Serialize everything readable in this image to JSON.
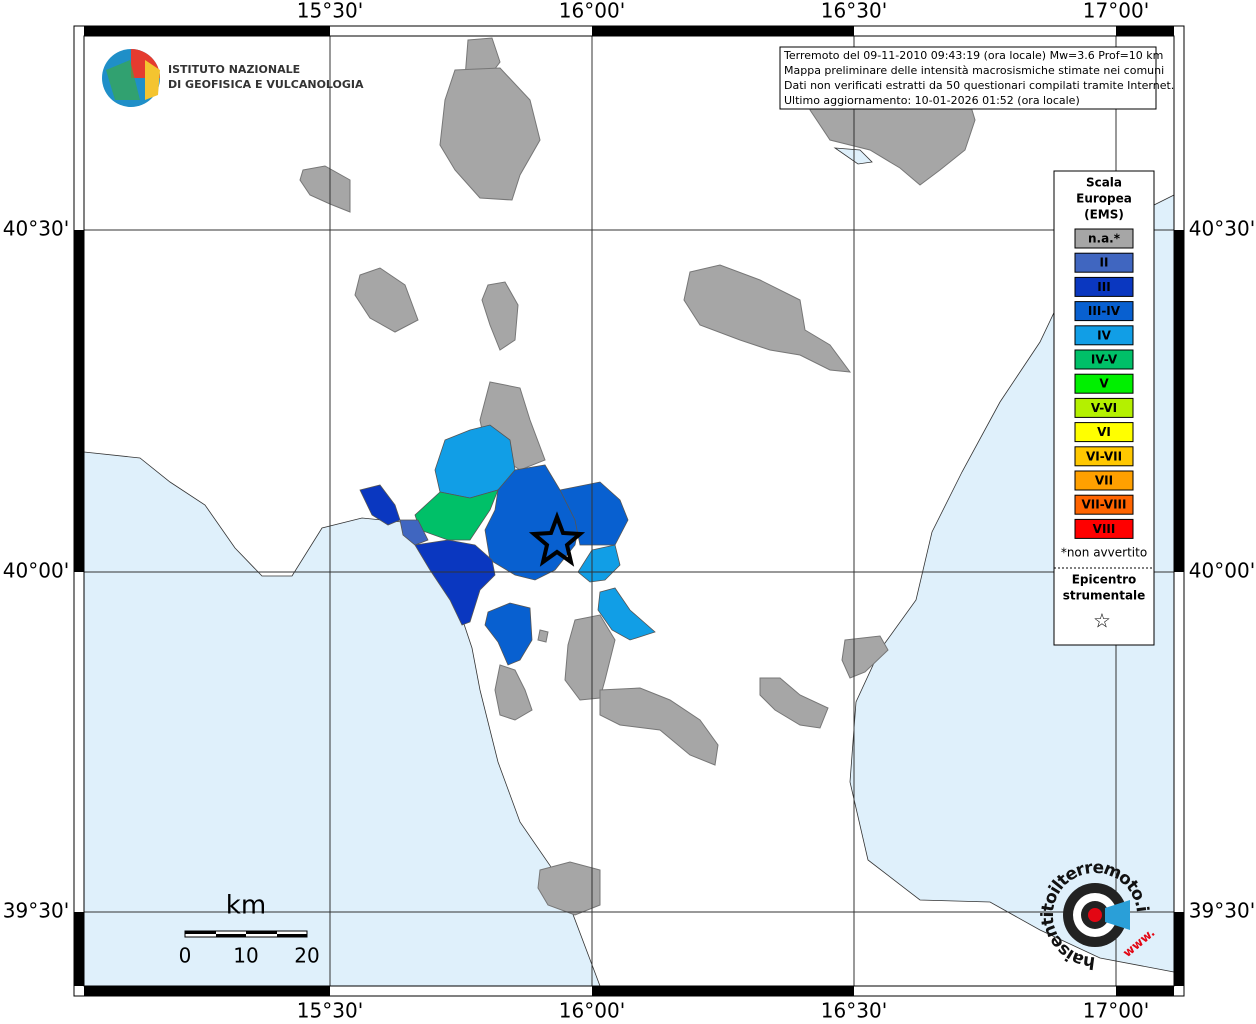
{
  "map": {
    "x_labels": [
      "15°30'",
      "16°00'",
      "16°30'",
      "17°00'"
    ],
    "y_labels": [
      "40°30'",
      "40°00'",
      "39°30'"
    ],
    "info_box": [
      "Terremoto del 09-11-2010 09:43:19 (ora locale) Mw=3.6 Prof=10 km",
      "Mappa preliminare delle intensità macrosismiche stimate nei comuni",
      "Dati non verificati estratti da 50 questionari compilati tramite Internet.",
      "Ultimo aggiornamento: 10-01-2026 01:52 (ora locale)"
    ],
    "logo": [
      "ISTITUTO NAZIONALE",
      "DI GEOFISICA E VULCANOLOGIA"
    ],
    "legend": {
      "title": [
        "Scala",
        "Europea",
        "(EMS)"
      ],
      "classes": [
        {
          "label": "n.a.*",
          "color": "#a6a6a6"
        },
        {
          "label": "II",
          "color": "#4066c0"
        },
        {
          "label": "III",
          "color": "#0a37c0"
        },
        {
          "label": "III-IV",
          "color": "#0860d0"
        },
        {
          "label": "IV",
          "color": "#119ee6"
        },
        {
          "label": "IV-V",
          "color": "#00c068"
        },
        {
          "label": "V",
          "color": "#00f000"
        },
        {
          "label": "V-VI",
          "color": "#b4f000"
        },
        {
          "label": "VI",
          "color": "#ffff00"
        },
        {
          "label": "VI-VII",
          "color": "#ffc800"
        },
        {
          "label": "VII",
          "color": "#ffa000"
        },
        {
          "label": "VII-VIII",
          "color": "#ff6400"
        },
        {
          "label": "VIII",
          "color": "#ff0000"
        }
      ],
      "note": "*non avvertito",
      "epicenter": [
        "Epicentro",
        "strumentale"
      ],
      "epicenter_symbol": "☆"
    },
    "scale_bar": {
      "unit": "km",
      "labels": [
        "0",
        "10",
        "20"
      ]
    },
    "watermark": {
      "site": "haisentitoilterremoto.it",
      "prefix": "www."
    }
  }
}
